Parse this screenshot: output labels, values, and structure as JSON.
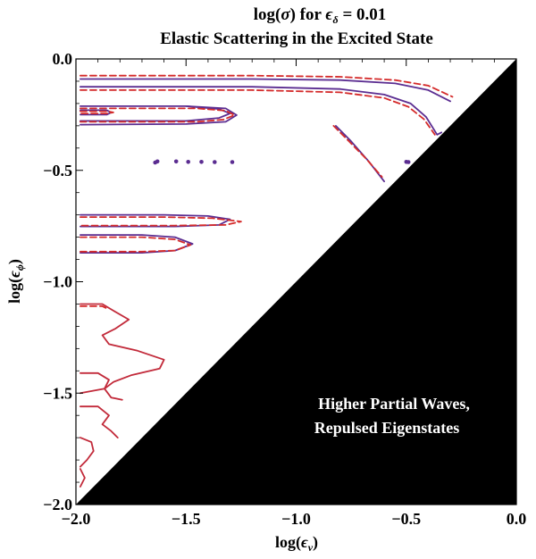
{
  "chart_data": {
    "type": "contour",
    "title_parts": {
      "pre": "log(",
      "sigma": "σ",
      "mid": ") for ",
      "eps": "ϵ",
      "eps_sub": "δ",
      "post": " = 0.01"
    },
    "subtitle": "Elastic Scattering in the Excited State",
    "xlabel_parts": {
      "pre": "log(",
      "eps": "ϵ",
      "sub": "ν",
      "post": ")"
    },
    "ylabel_parts": {
      "pre": "log(",
      "eps": "ϵ",
      "sub": "ϕ",
      "post": ")"
    },
    "xlim": [
      -2.0,
      0.0
    ],
    "ylim": [
      -2.0,
      0.0
    ],
    "x_ticks": [
      "−2.0",
      "−1.5",
      "−1.0",
      "−0.5",
      "0.0"
    ],
    "y_ticks": [
      "0.0",
      "−0.5",
      "−1.0",
      "−1.5",
      "−2.0"
    ],
    "x_tick_values": [
      -2.0,
      -1.5,
      -1.0,
      -0.5,
      0.0
    ],
    "y_tick_values": [
      0.0,
      -0.5,
      -1.0,
      -1.5,
      -2.0
    ],
    "excluded_region": {
      "label_lines": [
        "Higher Partial Waves,",
        "Repulsed Eigenstates"
      ],
      "vertices": [
        [
          -2.0,
          -2.0
        ],
        [
          0.0,
          0.0
        ],
        [
          0.0,
          -2.0
        ]
      ],
      "color": "#000000"
    },
    "series": [
      {
        "color": "#5b2d91",
        "dash": "",
        "contours": [
          [
            [
              -1.98,
              -0.09
            ],
            [
              -1.2,
              -0.09
            ],
            [
              -0.8,
              -0.095
            ],
            [
              -0.55,
              -0.11
            ],
            [
              -0.4,
              -0.14
            ],
            [
              -0.3,
              -0.19
            ]
          ],
          [
            [
              -1.98,
              -0.125
            ],
            [
              -1.2,
              -0.125
            ],
            [
              -0.8,
              -0.135
            ],
            [
              -0.6,
              -0.16
            ],
            [
              -0.48,
              -0.2
            ],
            [
              -0.41,
              -0.26
            ],
            [
              -0.36,
              -0.34
            ],
            [
              -0.34,
              -0.33
            ]
          ],
          [
            [
              -1.98,
              -0.212
            ],
            [
              -1.5,
              -0.212
            ],
            [
              -1.35,
              -0.225
            ],
            [
              -1.3,
              -0.245
            ],
            [
              -1.35,
              -0.265
            ],
            [
              -1.5,
              -0.278
            ],
            [
              -1.98,
              -0.278
            ]
          ],
          [
            [
              -1.98,
              -0.295
            ],
            [
              -1.5,
              -0.292
            ],
            [
              -1.32,
              -0.282
            ],
            [
              -1.27,
              -0.252
            ],
            [
              -1.32,
              -0.222
            ],
            [
              -1.5,
              -0.212
            ]
          ],
          [
            [
              -1.98,
              -0.23
            ],
            [
              -1.86,
              -0.23
            ],
            [
              -1.84,
              -0.24
            ],
            [
              -1.86,
              -0.25
            ],
            [
              -1.98,
              -0.25
            ]
          ],
          [
            [
              -1.98,
              -0.7
            ],
            [
              -1.6,
              -0.7
            ],
            [
              -1.4,
              -0.705
            ],
            [
              -1.3,
              -0.72
            ],
            [
              -1.35,
              -0.745
            ],
            [
              -1.55,
              -0.752
            ],
            [
              -1.98,
              -0.752
            ]
          ],
          [
            [
              -1.98,
              -0.79
            ],
            [
              -1.7,
              -0.79
            ],
            [
              -1.55,
              -0.8
            ],
            [
              -1.47,
              -0.83
            ],
            [
              -1.55,
              -0.86
            ],
            [
              -1.7,
              -0.87
            ],
            [
              -1.98,
              -0.87
            ]
          ],
          [
            [
              -0.82,
              -0.3
            ],
            [
              -0.75,
              -0.37
            ],
            [
              -0.67,
              -0.46
            ],
            [
              -0.6,
              -0.55
            ]
          ]
        ]
      },
      {
        "color": "#d42a2a",
        "dash": "7 4",
        "contours": [
          [
            [
              -1.98,
              -0.075
            ],
            [
              -1.2,
              -0.075
            ],
            [
              -0.8,
              -0.08
            ],
            [
              -0.55,
              -0.095
            ],
            [
              -0.4,
              -0.12
            ],
            [
              -0.29,
              -0.17
            ]
          ],
          [
            [
              -1.98,
              -0.14
            ],
            [
              -1.2,
              -0.14
            ],
            [
              -0.8,
              -0.15
            ],
            [
              -0.6,
              -0.175
            ],
            [
              -0.49,
              -0.215
            ],
            [
              -0.42,
              -0.27
            ],
            [
              -0.37,
              -0.34
            ]
          ],
          [
            [
              -1.98,
              -0.222
            ],
            [
              -1.45,
              -0.222
            ],
            [
              -1.32,
              -0.232
            ],
            [
              -1.28,
              -0.252
            ],
            [
              -1.33,
              -0.272
            ],
            [
              -1.45,
              -0.282
            ],
            [
              -1.98,
              -0.282
            ]
          ],
          [
            [
              -1.98,
              -0.235
            ],
            [
              -1.86,
              -0.235
            ],
            [
              -1.83,
              -0.24
            ],
            [
              -1.86,
              -0.245
            ],
            [
              -1.98,
              -0.245
            ]
          ],
          [
            [
              -1.98,
              -0.71
            ],
            [
              -1.6,
              -0.71
            ],
            [
              -1.38,
              -0.715
            ],
            [
              -1.25,
              -0.73
            ],
            [
              -1.32,
              -0.745
            ],
            [
              -1.55,
              -0.748
            ],
            [
              -1.98,
              -0.748
            ]
          ],
          [
            [
              -1.98,
              -0.8
            ],
            [
              -1.7,
              -0.8
            ],
            [
              -1.55,
              -0.81
            ],
            [
              -1.48,
              -0.835
            ],
            [
              -1.55,
              -0.86
            ],
            [
              -1.7,
              -0.865
            ],
            [
              -1.98,
              -0.865
            ]
          ],
          [
            [
              -1.98,
              -1.11
            ],
            [
              -1.88,
              -1.11
            ],
            [
              -1.86,
              -1.12
            ]
          ],
          [
            [
              -0.83,
              -0.3
            ],
            [
              -0.76,
              -0.37
            ],
            [
              -0.68,
              -0.45
            ],
            [
              -0.61,
              -0.53
            ]
          ]
        ]
      },
      {
        "color": "#c22a3a",
        "dash": "",
        "contours": [
          [
            [
              -1.98,
              -1.1
            ],
            [
              -1.88,
              -1.1
            ],
            [
              -1.83,
              -1.13
            ],
            [
              -1.76,
              -1.17
            ],
            [
              -1.82,
              -1.21
            ],
            [
              -1.88,
              -1.24
            ],
            [
              -1.85,
              -1.28
            ],
            [
              -1.72,
              -1.31
            ],
            [
              -1.6,
              -1.35
            ],
            [
              -1.62,
              -1.39
            ],
            [
              -1.75,
              -1.42
            ],
            [
              -1.83,
              -1.45
            ],
            [
              -1.87,
              -1.48
            ],
            [
              -1.84,
              -1.52
            ],
            [
              -1.79,
              -1.53
            ]
          ],
          [
            [
              -1.98,
              -1.41
            ],
            [
              -1.9,
              -1.41
            ],
            [
              -1.85,
              -1.44
            ],
            [
              -1.87,
              -1.48
            ],
            [
              -1.98,
              -1.5
            ]
          ],
          [
            [
              -1.98,
              -1.56
            ],
            [
              -1.9,
              -1.56
            ],
            [
              -1.85,
              -1.6
            ],
            [
              -1.88,
              -1.64
            ],
            [
              -1.84,
              -1.67
            ],
            [
              -1.81,
              -1.7
            ]
          ],
          [
            [
              -1.98,
              -1.7
            ],
            [
              -1.93,
              -1.72
            ],
            [
              -1.92,
              -1.76
            ],
            [
              -1.95,
              -1.8
            ],
            [
              -1.98,
              -1.83
            ]
          ],
          [
            [
              -1.98,
              -1.84
            ],
            [
              -1.96,
              -1.88
            ],
            [
              -1.98,
              -1.92
            ]
          ]
        ]
      }
    ],
    "dots": {
      "color": "#5b2d91",
      "points": [
        [
          -1.64,
          -0.465
        ],
        [
          -1.63,
          -0.46
        ],
        [
          -1.545,
          -0.46
        ],
        [
          -1.49,
          -0.462
        ],
        [
          -1.43,
          -0.462
        ],
        [
          -1.37,
          -0.463
        ],
        [
          -1.29,
          -0.463
        ],
        [
          -0.5,
          -0.462
        ],
        [
          -0.49,
          -0.463
        ]
      ]
    }
  }
}
